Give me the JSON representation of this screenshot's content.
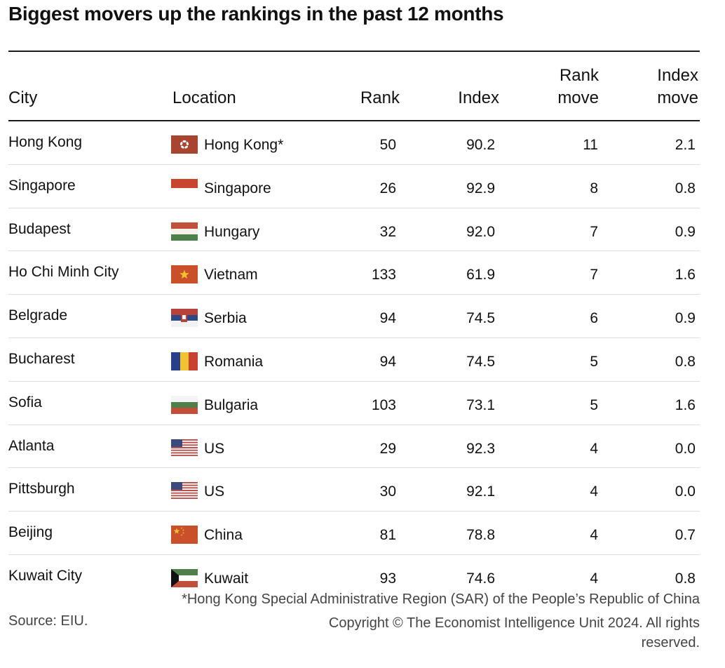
{
  "title": "Biggest movers up the rankings in the past 12 months",
  "chart_data": {
    "type": "table",
    "columns": [
      "City",
      "Location",
      "Rank",
      "Index",
      "Rank move",
      "Index move"
    ],
    "rows": [
      {
        "city": "Hong Kong",
        "location": "Hong Kong*",
        "flag": "hong-kong-flag",
        "rank": "50",
        "index": "90.2",
        "rank_move": "11",
        "index_move": "2.1"
      },
      {
        "city": "Singapore",
        "location": "Singapore",
        "flag": "singapore-flag",
        "rank": "26",
        "index": "92.9",
        "rank_move": "8",
        "index_move": "0.8"
      },
      {
        "city": "Budapest",
        "location": "Hungary",
        "flag": "hungary-flag",
        "rank": "32",
        "index": "92.0",
        "rank_move": "7",
        "index_move": "0.9"
      },
      {
        "city": "Ho Chi Minh City",
        "location": "Vietnam",
        "flag": "vietnam-flag",
        "rank": "133",
        "index": "61.9",
        "rank_move": "7",
        "index_move": "1.6"
      },
      {
        "city": "Belgrade",
        "location": "Serbia",
        "flag": "serbia-flag",
        "rank": "94",
        "index": "74.5",
        "rank_move": "6",
        "index_move": "0.9"
      },
      {
        "city": "Bucharest",
        "location": "Romania",
        "flag": "romania-flag",
        "rank": "94",
        "index": "74.5",
        "rank_move": "5",
        "index_move": "0.8"
      },
      {
        "city": "Sofia",
        "location": "Bulgaria",
        "flag": "bulgaria-flag",
        "rank": "103",
        "index": "73.1",
        "rank_move": "5",
        "index_move": "1.6"
      },
      {
        "city": "Atlanta",
        "location": "US",
        "flag": "us-flag",
        "rank": "29",
        "index": "92.3",
        "rank_move": "4",
        "index_move": "0.0"
      },
      {
        "city": "Pittsburgh",
        "location": "US",
        "flag": "us-flag",
        "rank": "30",
        "index": "92.1",
        "rank_move": "4",
        "index_move": "0.0"
      },
      {
        "city": "Beijing",
        "location": "China",
        "flag": "china-flag",
        "rank": "81",
        "index": "78.8",
        "rank_move": "4",
        "index_move": "0.7"
      },
      {
        "city": "Kuwait City",
        "location": "Kuwait",
        "flag": "kuwait-flag",
        "rank": "93",
        "index": "74.6",
        "rank_move": "4",
        "index_move": "0.8"
      }
    ]
  },
  "headers": {
    "city": "City",
    "location": "Location",
    "rank": "Rank",
    "index": "Index",
    "rank_move_1": "Rank",
    "rank_move_2": "move",
    "index_move_1": "Index",
    "index_move_2": "move"
  },
  "footnote": "*Hong Kong Special Administrative Region (SAR) of the People’s Republic of China",
  "source": "Source: EIU.",
  "copyright": "Copyright © The Economist Intelligence Unit 2024. All rights reserved.",
  "colors": {
    "text": "#111111",
    "muted": "#444444",
    "rule": "#1a1a1a",
    "row_divider": "#dcdcdc"
  }
}
